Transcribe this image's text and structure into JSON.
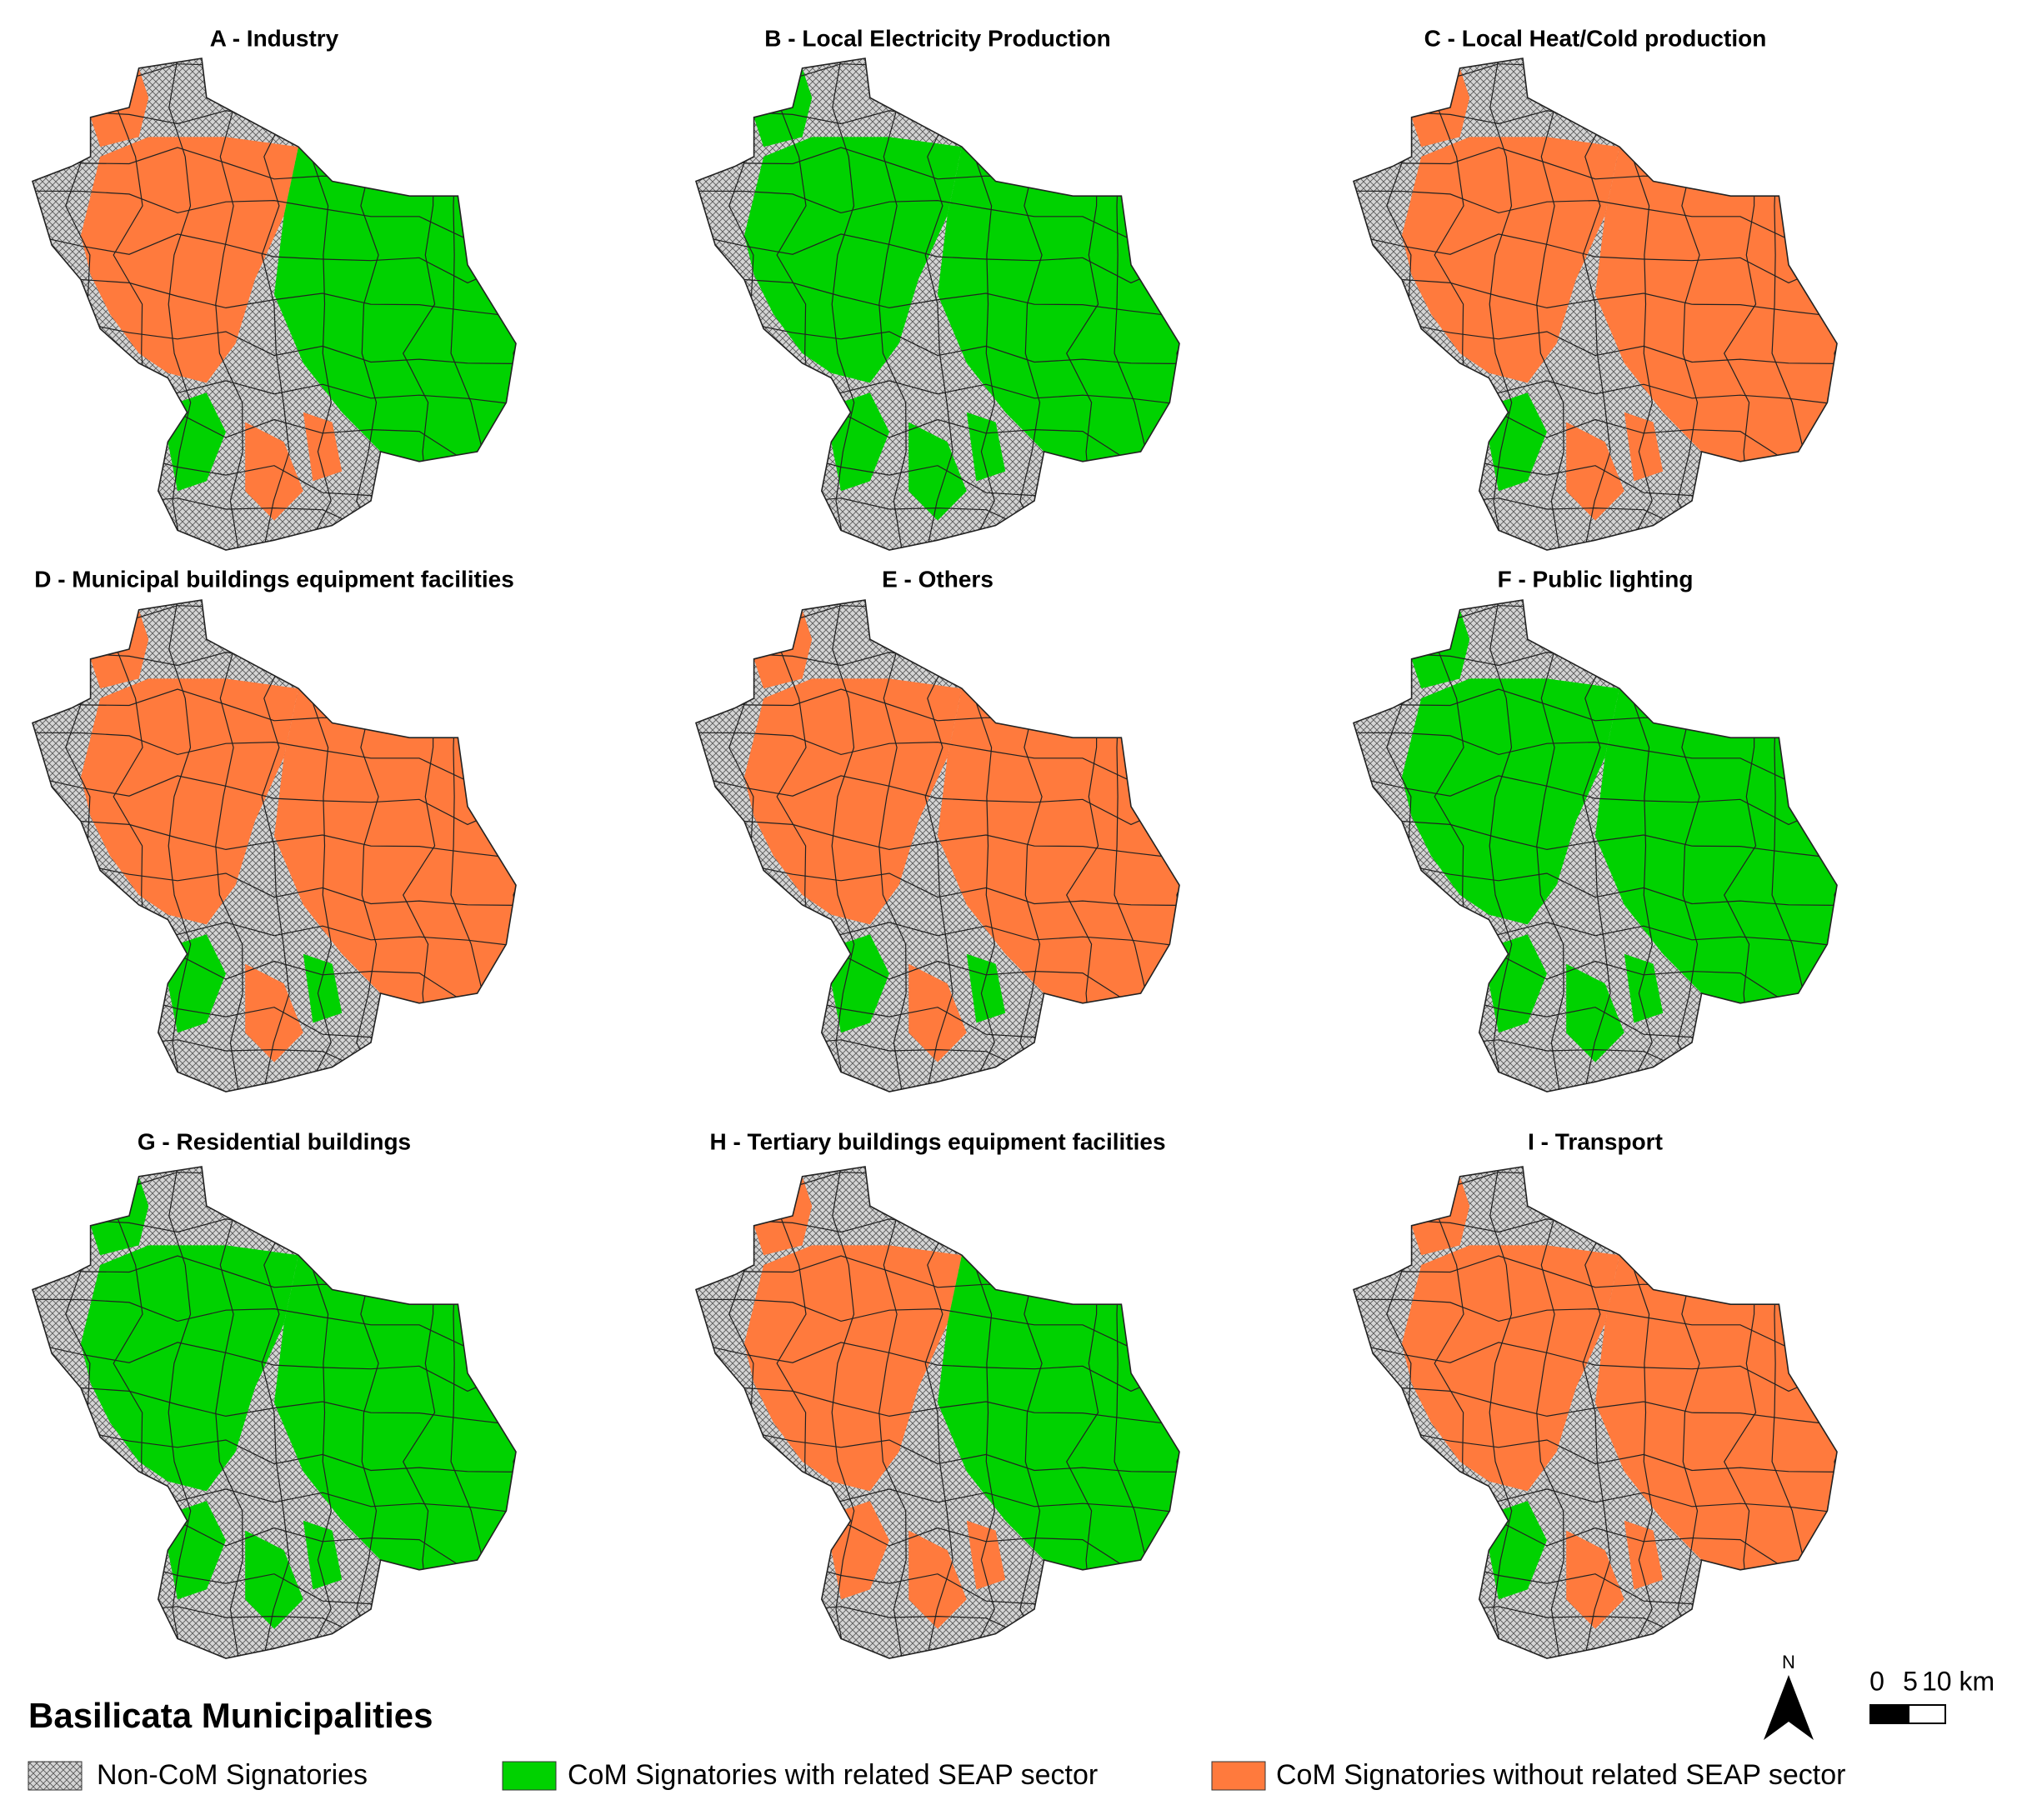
{
  "panels": [
    {
      "title": "A - Industry"
    },
    {
      "title": "B - Local Electricity Production"
    },
    {
      "title": "C - Local Heat/Cold production"
    },
    {
      "title": "D - Municipal buildings equipment facilities"
    },
    {
      "title": "E - Others"
    },
    {
      "title": "F - Public lighting"
    },
    {
      "title": "G - Residential buildings"
    },
    {
      "title": "H - Tertiary buildings equipment facilities"
    },
    {
      "title": "I - Transport"
    }
  ],
  "legend": {
    "title": "Basilicata Municipalities",
    "items": [
      "Non-CoM Signatories",
      "CoM Signatories with related SEAP sector",
      "CoM Signatories without related SEAP sector"
    ]
  },
  "north": "N",
  "scale_bar": {
    "labels": [
      "0",
      "5",
      "10 km"
    ]
  }
}
